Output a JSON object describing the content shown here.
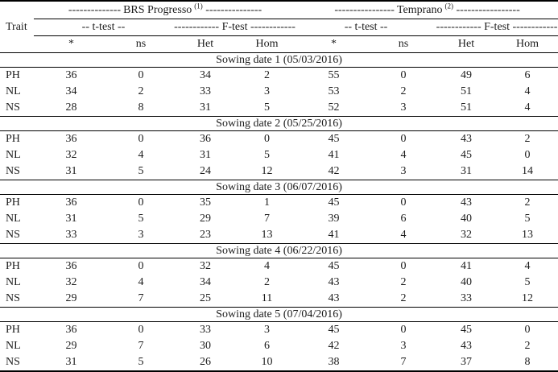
{
  "table": {
    "trait_header": "Trait",
    "groups": [
      {
        "dashes_left": "--------------",
        "name": "BRS Progresso",
        "sup": "(1)",
        "dashes_right": "---------------",
        "t_test_label": "-- t-test --",
        "f_test_label": "------------ F-test ------------"
      },
      {
        "dashes_left": "----------------",
        "name": "Temprano",
        "sup": "(2)",
        "dashes_right": "-----------------",
        "t_test_label": "-- t-test --",
        "f_test_label": "------------ F-test ------------"
      }
    ],
    "column_headers": [
      "*",
      "ns",
      "Het",
      "Hom",
      "*",
      "ns",
      "Het",
      "Hom"
    ],
    "sections": [
      {
        "title": "Sowing date 1 (05/03/2016)",
        "rows": [
          {
            "trait": "PH",
            "values": [
              "36",
              "0",
              "34",
              "2",
              "55",
              "0",
              "49",
              "6"
            ]
          },
          {
            "trait": "NL",
            "values": [
              "34",
              "2",
              "33",
              "3",
              "53",
              "2",
              "51",
              "4"
            ]
          },
          {
            "trait": "NS",
            "values": [
              "28",
              "8",
              "31",
              "5",
              "52",
              "3",
              "51",
              "4"
            ]
          }
        ]
      },
      {
        "title": "Sowing date 2 (05/25/2016)",
        "rows": [
          {
            "trait": "PH",
            "values": [
              "36",
              "0",
              "36",
              "0",
              "45",
              "0",
              "43",
              "2"
            ]
          },
          {
            "trait": "NL",
            "values": [
              "32",
              "4",
              "31",
              "5",
              "41",
              "4",
              "45",
              "0"
            ]
          },
          {
            "trait": "NS",
            "values": [
              "31",
              "5",
              "24",
              "12",
              "42",
              "3",
              "31",
              "14"
            ]
          }
        ]
      },
      {
        "title": "Sowing date 3 (06/07/2016)",
        "rows": [
          {
            "trait": "PH",
            "values": [
              "36",
              "0",
              "35",
              "1",
              "45",
              "0",
              "43",
              "2"
            ]
          },
          {
            "trait": "NL",
            "values": [
              "31",
              "5",
              "29",
              "7",
              "39",
              "6",
              "40",
              "5"
            ]
          },
          {
            "trait": "NS",
            "values": [
              "33",
              "3",
              "23",
              "13",
              "41",
              "4",
              "32",
              "13"
            ]
          }
        ]
      },
      {
        "title": "Sowing date 4 (06/22/2016)",
        "rows": [
          {
            "trait": "PH",
            "values": [
              "36",
              "0",
              "32",
              "4",
              "45",
              "0",
              "41",
              "4"
            ]
          },
          {
            "trait": "NL",
            "values": [
              "32",
              "4",
              "34",
              "2",
              "43",
              "2",
              "40",
              "5"
            ]
          },
          {
            "trait": "NS",
            "values": [
              "29",
              "7",
              "25",
              "11",
              "43",
              "2",
              "33",
              "12"
            ]
          }
        ]
      },
      {
        "title": "Sowing date 5 (07/04/2016)",
        "rows": [
          {
            "trait": "PH",
            "values": [
              "36",
              "0",
              "33",
              "3",
              "45",
              "0",
              "45",
              "0"
            ]
          },
          {
            "trait": "NL",
            "values": [
              "29",
              "7",
              "30",
              "6",
              "42",
              "3",
              "43",
              "2"
            ]
          },
          {
            "trait": "NS",
            "values": [
              "31",
              "5",
              "26",
              "10",
              "38",
              "7",
              "37",
              "8"
            ]
          }
        ]
      }
    ]
  }
}
